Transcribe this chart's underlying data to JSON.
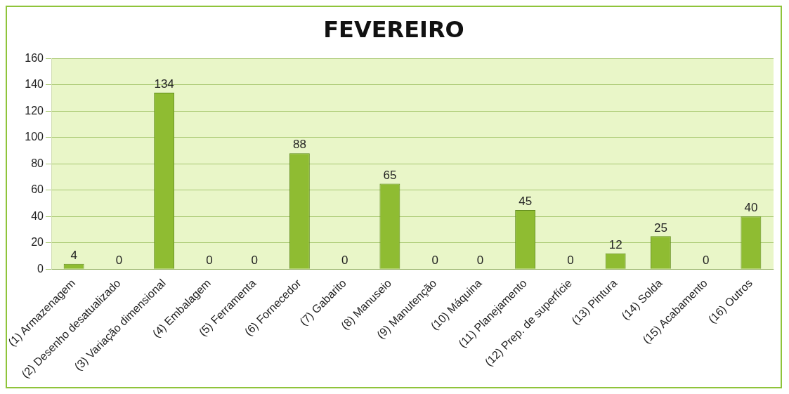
{
  "chart_data": {
    "type": "bar",
    "title": "FEVEREIRO",
    "categories": [
      "(1) Armazenagem",
      "(2) Desenho desatualizado",
      "(3) Variação dimensional",
      "(4) Embalagem",
      "(5) Ferramenta",
      "(6) Fornecedor",
      "(7) Gabarito",
      "(8) Manuseio",
      "(9) Manutenção",
      "(10) Máquina",
      "(11) Planejamento",
      "(12) Prep. de superfície",
      "(13) Pintura",
      "(14) Solda",
      "(15) Acabamento",
      "(16) Outros"
    ],
    "values": [
      4,
      0,
      134,
      0,
      0,
      88,
      0,
      65,
      0,
      0,
      45,
      0,
      12,
      25,
      0,
      40
    ],
    "color": "#8fbc32",
    "ylim": [
      0,
      160
    ],
    "yticks": [
      0,
      20,
      40,
      60,
      80,
      100,
      120,
      140,
      160
    ],
    "grid": "y",
    "data_labels": true,
    "legend": false
  }
}
